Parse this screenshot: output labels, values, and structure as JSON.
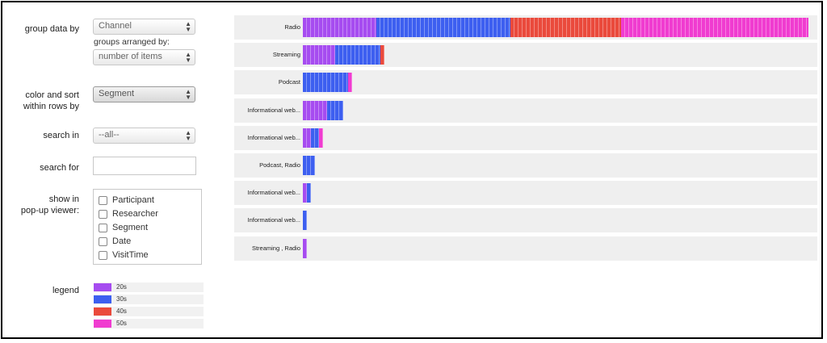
{
  "controls": {
    "group_by": {
      "label": "group data by",
      "value": "Channel"
    },
    "arranged_by": {
      "label": "groups arranged by:",
      "value": "number of items"
    },
    "color_sort": {
      "label_line1": "color and sort",
      "label_line2": "within rows by",
      "value": "Segment"
    },
    "search_in": {
      "label": "search in",
      "value": "--all--"
    },
    "search_for": {
      "label": "search for",
      "value": ""
    },
    "popup": {
      "label_line1": "show in",
      "label_line2": "pop-up viewer:",
      "options": [
        "Participant",
        "Researcher",
        "Segment",
        "Date",
        "VisitTime"
      ]
    }
  },
  "legend": {
    "label": "legend",
    "items": [
      {
        "name": "20s",
        "color": "#a64cf0"
      },
      {
        "name": "30s",
        "color": "#3d5ff0"
      },
      {
        "name": "40s",
        "color": "#ea4a3c"
      },
      {
        "name": "50s",
        "color": "#f03cd0"
      }
    ]
  },
  "chart_data": {
    "type": "bar",
    "orientation": "horizontal",
    "stacked": true,
    "categories": [
      "Radio",
      "Streaming",
      "Podcast",
      "Informational web...",
      "Informational web...",
      "Podcast, Radio",
      "Informational web...",
      "Informational web...",
      "Streaming , Radio"
    ],
    "series": [
      {
        "name": "20s",
        "values": [
          18,
          8,
          0,
          6,
          2,
          0,
          1,
          0,
          1
        ]
      },
      {
        "name": "30s",
        "values": [
          33,
          11,
          11,
          4,
          2,
          3,
          1,
          1,
          0
        ]
      },
      {
        "name": "40s",
        "values": [
          27,
          1,
          0,
          0,
          0,
          0,
          0,
          0,
          0
        ]
      },
      {
        "name": "50s",
        "values": [
          46,
          0,
          1,
          0,
          1,
          0,
          0,
          0,
          0
        ]
      }
    ],
    "xlim": [
      0,
      124
    ],
    "legend_position": "bottom-left"
  }
}
